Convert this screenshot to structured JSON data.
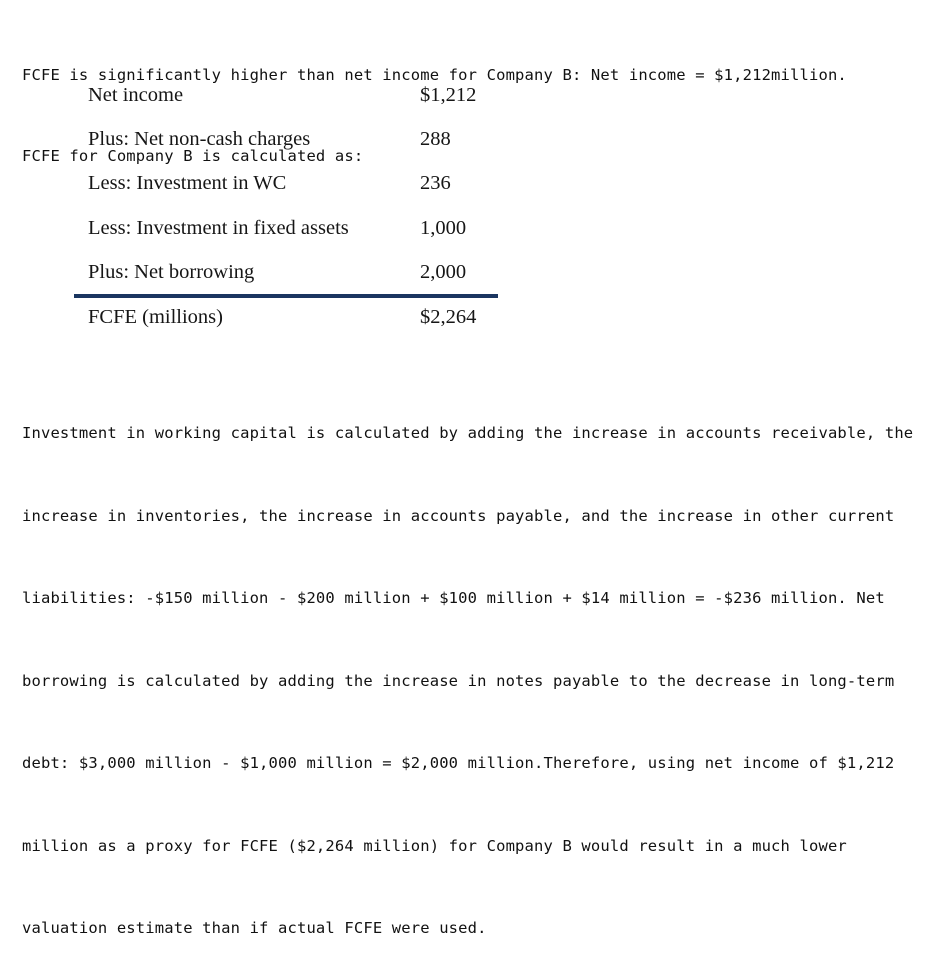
{
  "intro": {
    "line1": "FCFE is significantly higher than net income for Company B: Net income = $1,212million.",
    "line2": "FCFE for Company B is calculated as:"
  },
  "table": {
    "rows": [
      {
        "label": "Net income",
        "value": "$1,212"
      },
      {
        "label": "Plus: Net non-cash charges",
        "value": "288"
      },
      {
        "label": "Less: Investment in WC",
        "value": "236"
      },
      {
        "label": "Less: Investment in fixed assets",
        "value": "1,000"
      },
      {
        "label": "Plus: Net borrowing",
        "value": "2,000"
      }
    ],
    "total": {
      "label": "FCFE (millions)",
      "value": "$2,264"
    },
    "rule_color": "#1a3560"
  },
  "explanation": {
    "lines": [
      "Investment in working capital is calculated by adding the increase in accounts receivable, the",
      "increase in inventories, the increase in accounts payable, and the increase in other current",
      "liabilities: -$150 million - $200 million + $100 million + $14 million = -$236 million. Net",
      "borrowing is calculated by adding the increase in notes payable to the decrease in long-term",
      "debt: $3,000 million - $1,000 million = $2,000 million.Therefore, using net income of $1,212",
      "million as a proxy for FCFE ($2,264 million) for Company B would result in a much lower",
      "valuation estimate than if actual FCFE were used."
    ]
  }
}
